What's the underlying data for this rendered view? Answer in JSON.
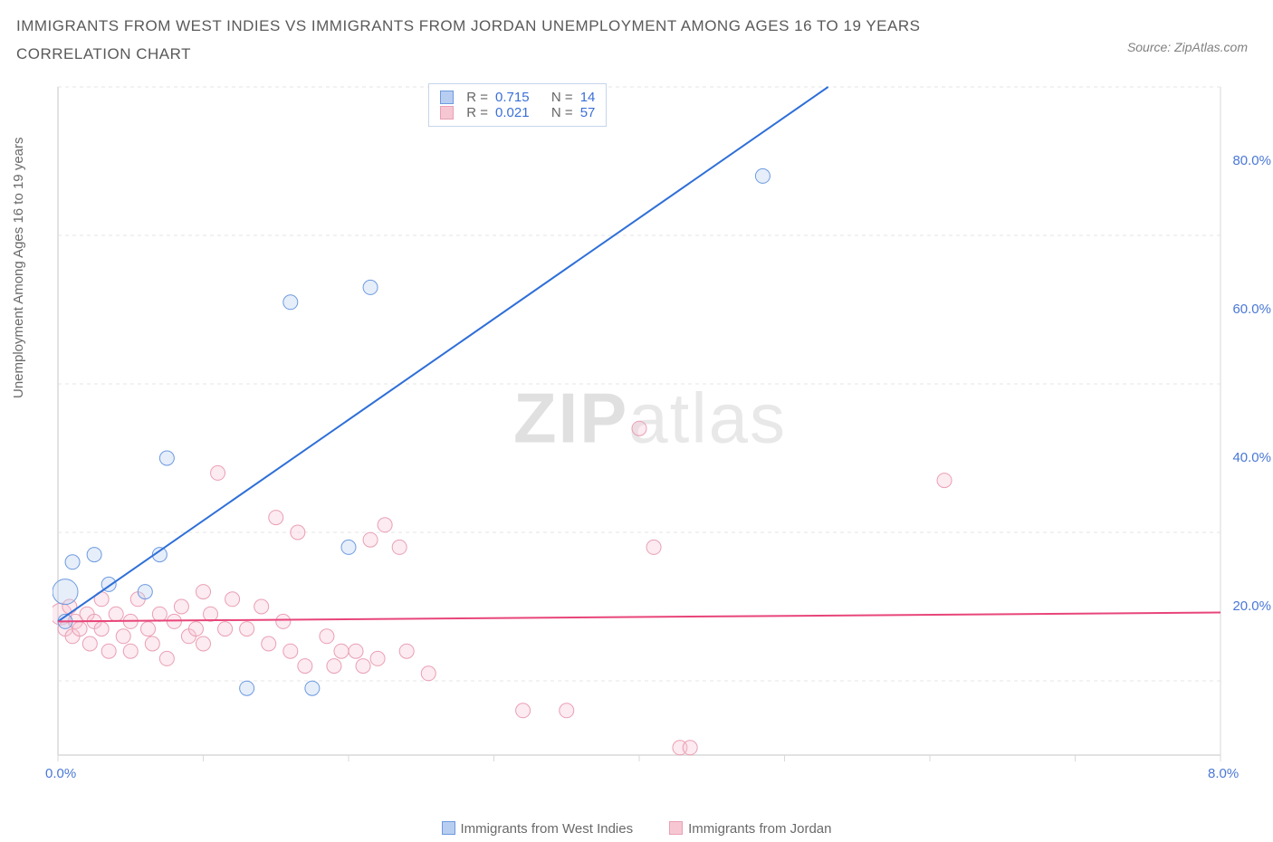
{
  "title": "IMMIGRANTS FROM WEST INDIES VS IMMIGRANTS FROM JORDAN UNEMPLOYMENT AMONG AGES 16 TO 19 YEARS CORRELATION CHART",
  "source_label": "Source: ZipAtlas.com",
  "y_axis_label": "Unemployment Among Ages 16 to 19 years",
  "watermark_bold": "ZIP",
  "watermark_rest": "atlas",
  "chart": {
    "type": "scatter",
    "x_domain": [
      0,
      8
    ],
    "y_domain": [
      0,
      90
    ],
    "plot_bg": "#ffffff",
    "grid_color": "#e6e6e6",
    "grid_dash": "4 4",
    "axis_line_color": "#d9d9d9",
    "x_ticks": [
      0,
      1,
      2,
      3,
      4,
      5,
      6,
      7,
      8
    ],
    "x_tick_labels": {
      "0": "0.0%",
      "8": "8.0%"
    },
    "y_gridlines": [
      10,
      30,
      50,
      70,
      90
    ],
    "y_tick_labels": {
      "20": "20.0%",
      "40": "40.0%",
      "60": "60.0%",
      "80": "80.0%"
    },
    "marker_radius": 8,
    "marker_opacity": 0.35,
    "line_width": 2
  },
  "series": [
    {
      "id": "west_indies",
      "label": "Immigrants from West Indies",
      "fill": "#b8cef0",
      "stroke": "#6c9ae0",
      "line_color": "#2e6fd8",
      "r": "0.715",
      "n": "14",
      "trend": {
        "x1": 0.0,
        "y1": 18.0,
        "x2": 5.3,
        "y2": 90.0
      },
      "points": [
        {
          "x": 0.05,
          "y": 22,
          "r": 14
        },
        {
          "x": 0.05,
          "y": 18,
          "r": 8
        },
        {
          "x": 0.1,
          "y": 26,
          "r": 8
        },
        {
          "x": 0.25,
          "y": 27,
          "r": 8
        },
        {
          "x": 0.35,
          "y": 23,
          "r": 8
        },
        {
          "x": 0.6,
          "y": 22,
          "r": 8
        },
        {
          "x": 0.7,
          "y": 27,
          "r": 8
        },
        {
          "x": 0.75,
          "y": 40,
          "r": 8
        },
        {
          "x": 1.3,
          "y": 9,
          "r": 8
        },
        {
          "x": 1.6,
          "y": 61,
          "r": 8
        },
        {
          "x": 1.75,
          "y": 9,
          "r": 8
        },
        {
          "x": 2.0,
          "y": 28,
          "r": 8
        },
        {
          "x": 2.15,
          "y": 63,
          "r": 8
        },
        {
          "x": 4.85,
          "y": 78,
          "r": 8
        }
      ]
    },
    {
      "id": "jordan",
      "label": "Immigrants from Jordan",
      "fill": "#f6c7d3",
      "stroke": "#ea9fb4",
      "line_color": "#e8457a",
      "r": "0.021",
      "n": "57",
      "trend": {
        "x1": 0.0,
        "y1": 18.0,
        "x2": 8.0,
        "y2": 19.2
      },
      "points": [
        {
          "x": 0.02,
          "y": 19,
          "r": 12
        },
        {
          "x": 0.05,
          "y": 17,
          "r": 8
        },
        {
          "x": 0.08,
          "y": 20,
          "r": 8
        },
        {
          "x": 0.1,
          "y": 16,
          "r": 8
        },
        {
          "x": 0.12,
          "y": 18,
          "r": 8
        },
        {
          "x": 0.15,
          "y": 17,
          "r": 8
        },
        {
          "x": 0.2,
          "y": 19,
          "r": 8
        },
        {
          "x": 0.22,
          "y": 15,
          "r": 8
        },
        {
          "x": 0.25,
          "y": 18,
          "r": 8
        },
        {
          "x": 0.3,
          "y": 21,
          "r": 8
        },
        {
          "x": 0.3,
          "y": 17,
          "r": 8
        },
        {
          "x": 0.35,
          "y": 14,
          "r": 8
        },
        {
          "x": 0.4,
          "y": 19,
          "r": 8
        },
        {
          "x": 0.45,
          "y": 16,
          "r": 8
        },
        {
          "x": 0.5,
          "y": 18,
          "r": 8
        },
        {
          "x": 0.5,
          "y": 14,
          "r": 8
        },
        {
          "x": 0.55,
          "y": 21,
          "r": 8
        },
        {
          "x": 0.62,
          "y": 17,
          "r": 8
        },
        {
          "x": 0.65,
          "y": 15,
          "r": 8
        },
        {
          "x": 0.7,
          "y": 19,
          "r": 8
        },
        {
          "x": 0.75,
          "y": 13,
          "r": 8
        },
        {
          "x": 0.8,
          "y": 18,
          "r": 8
        },
        {
          "x": 0.85,
          "y": 20,
          "r": 8
        },
        {
          "x": 0.9,
          "y": 16,
          "r": 8
        },
        {
          "x": 0.95,
          "y": 17,
          "r": 8
        },
        {
          "x": 1.0,
          "y": 22,
          "r": 8
        },
        {
          "x": 1.0,
          "y": 15,
          "r": 8
        },
        {
          "x": 1.05,
          "y": 19,
          "r": 8
        },
        {
          "x": 1.1,
          "y": 38,
          "r": 8
        },
        {
          "x": 1.15,
          "y": 17,
          "r": 8
        },
        {
          "x": 1.2,
          "y": 21,
          "r": 8
        },
        {
          "x": 1.3,
          "y": 17,
          "r": 8
        },
        {
          "x": 1.4,
          "y": 20,
          "r": 8
        },
        {
          "x": 1.45,
          "y": 15,
          "r": 8
        },
        {
          "x": 1.5,
          "y": 32,
          "r": 8
        },
        {
          "x": 1.55,
          "y": 18,
          "r": 8
        },
        {
          "x": 1.6,
          "y": 14,
          "r": 8
        },
        {
          "x": 1.65,
          "y": 30,
          "r": 8
        },
        {
          "x": 1.7,
          "y": 12,
          "r": 8
        },
        {
          "x": 1.85,
          "y": 16,
          "r": 8
        },
        {
          "x": 1.9,
          "y": 12,
          "r": 8
        },
        {
          "x": 1.95,
          "y": 14,
          "r": 8
        },
        {
          "x": 2.05,
          "y": 14,
          "r": 8
        },
        {
          "x": 2.1,
          "y": 12,
          "r": 8
        },
        {
          "x": 2.15,
          "y": 29,
          "r": 8
        },
        {
          "x": 2.2,
          "y": 13,
          "r": 8
        },
        {
          "x": 2.25,
          "y": 31,
          "r": 8
        },
        {
          "x": 2.35,
          "y": 28,
          "r": 8
        },
        {
          "x": 2.4,
          "y": 14,
          "r": 8
        },
        {
          "x": 2.55,
          "y": 11,
          "r": 8
        },
        {
          "x": 3.2,
          "y": 6,
          "r": 8
        },
        {
          "x": 3.5,
          "y": 6,
          "r": 8
        },
        {
          "x": 4.0,
          "y": 44,
          "r": 8
        },
        {
          "x": 4.1,
          "y": 28,
          "r": 8
        },
        {
          "x": 4.28,
          "y": 1,
          "r": 8
        },
        {
          "x": 4.35,
          "y": 1,
          "r": 8
        },
        {
          "x": 6.1,
          "y": 37,
          "r": 8
        }
      ]
    }
  ],
  "legend_box": {
    "r_label": "R  =",
    "n_label": "N  ="
  },
  "footer": {
    "series1": "Immigrants from West Indies",
    "series2": "Immigrants from Jordan"
  }
}
